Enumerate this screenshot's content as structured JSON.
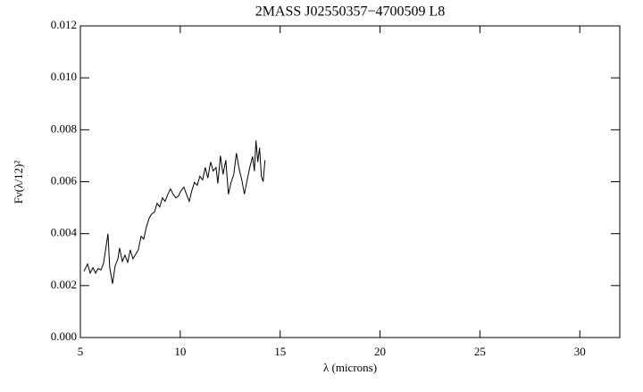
{
  "chart_data": {
    "type": "line",
    "title": "2MASS J02550357−4700509 L8",
    "x_label": "λ (microns)",
    "y_label": "Fν(λ/12)²",
    "xlim": [
      5,
      32
    ],
    "ylim": [
      0,
      0.012
    ],
    "xticks": [
      5,
      10,
      15,
      20,
      25,
      30
    ],
    "yticks": [
      {
        "value": 0,
        "label": "0.000"
      },
      {
        "value": 0.002,
        "label": "0.002"
      },
      {
        "value": 0.004,
        "label": "0.004"
      },
      {
        "value": 0.006,
        "label": "0.006"
      },
      {
        "value": 0.008,
        "label": "0.008"
      },
      {
        "value": 0.01,
        "label": "0.010"
      },
      {
        "value": 0.012,
        "label": "0.012"
      }
    ],
    "grid": false,
    "series": [
      {
        "color": "#000000",
        "x": [
          5.18,
          5.36,
          5.49,
          5.63,
          5.76,
          5.89,
          6.03,
          6.16,
          6.25,
          6.38,
          6.47,
          6.61,
          6.74,
          6.88,
          6.96,
          7.1,
          7.23,
          7.37,
          7.5,
          7.63,
          7.77,
          7.9,
          8.04,
          8.17,
          8.3,
          8.44,
          8.57,
          8.71,
          8.84,
          8.97,
          9.11,
          9.24,
          9.38,
          9.51,
          9.64,
          9.78,
          9.91,
          10.04,
          10.18,
          10.31,
          10.45,
          10.58,
          10.71,
          10.85,
          10.98,
          11.12,
          11.25,
          11.38,
          11.52,
          11.65,
          11.79,
          11.88,
          12.01,
          12.14,
          12.28,
          12.41,
          12.54,
          12.68,
          12.81,
          12.95,
          13.08,
          13.21,
          13.35,
          13.48,
          13.62,
          13.71,
          13.79,
          13.88,
          13.97,
          14.06,
          14.15,
          14.24
        ],
        "values": [
          0.00255,
          0.00283,
          0.00248,
          0.00269,
          0.00248,
          0.00266,
          0.0026,
          0.00286,
          0.00331,
          0.004,
          0.00269,
          0.00207,
          0.00276,
          0.00303,
          0.00345,
          0.00293,
          0.00317,
          0.0029,
          0.00338,
          0.00303,
          0.00321,
          0.00338,
          0.0039,
          0.00379,
          0.00424,
          0.00459,
          0.00476,
          0.00483,
          0.00517,
          0.00503,
          0.00538,
          0.00524,
          0.00552,
          0.00572,
          0.00552,
          0.00538,
          0.00545,
          0.00566,
          0.00579,
          0.00552,
          0.00524,
          0.00566,
          0.00597,
          0.00586,
          0.00621,
          0.00607,
          0.00655,
          0.00614,
          0.00676,
          0.00641,
          0.00655,
          0.00593,
          0.007,
          0.00628,
          0.00683,
          0.00552,
          0.00597,
          0.00628,
          0.0071,
          0.00648,
          0.00607,
          0.00552,
          0.00607,
          0.00655,
          0.00697,
          0.00641,
          0.00759,
          0.00676,
          0.00731,
          0.00621,
          0.006,
          0.00683
        ]
      }
    ]
  }
}
